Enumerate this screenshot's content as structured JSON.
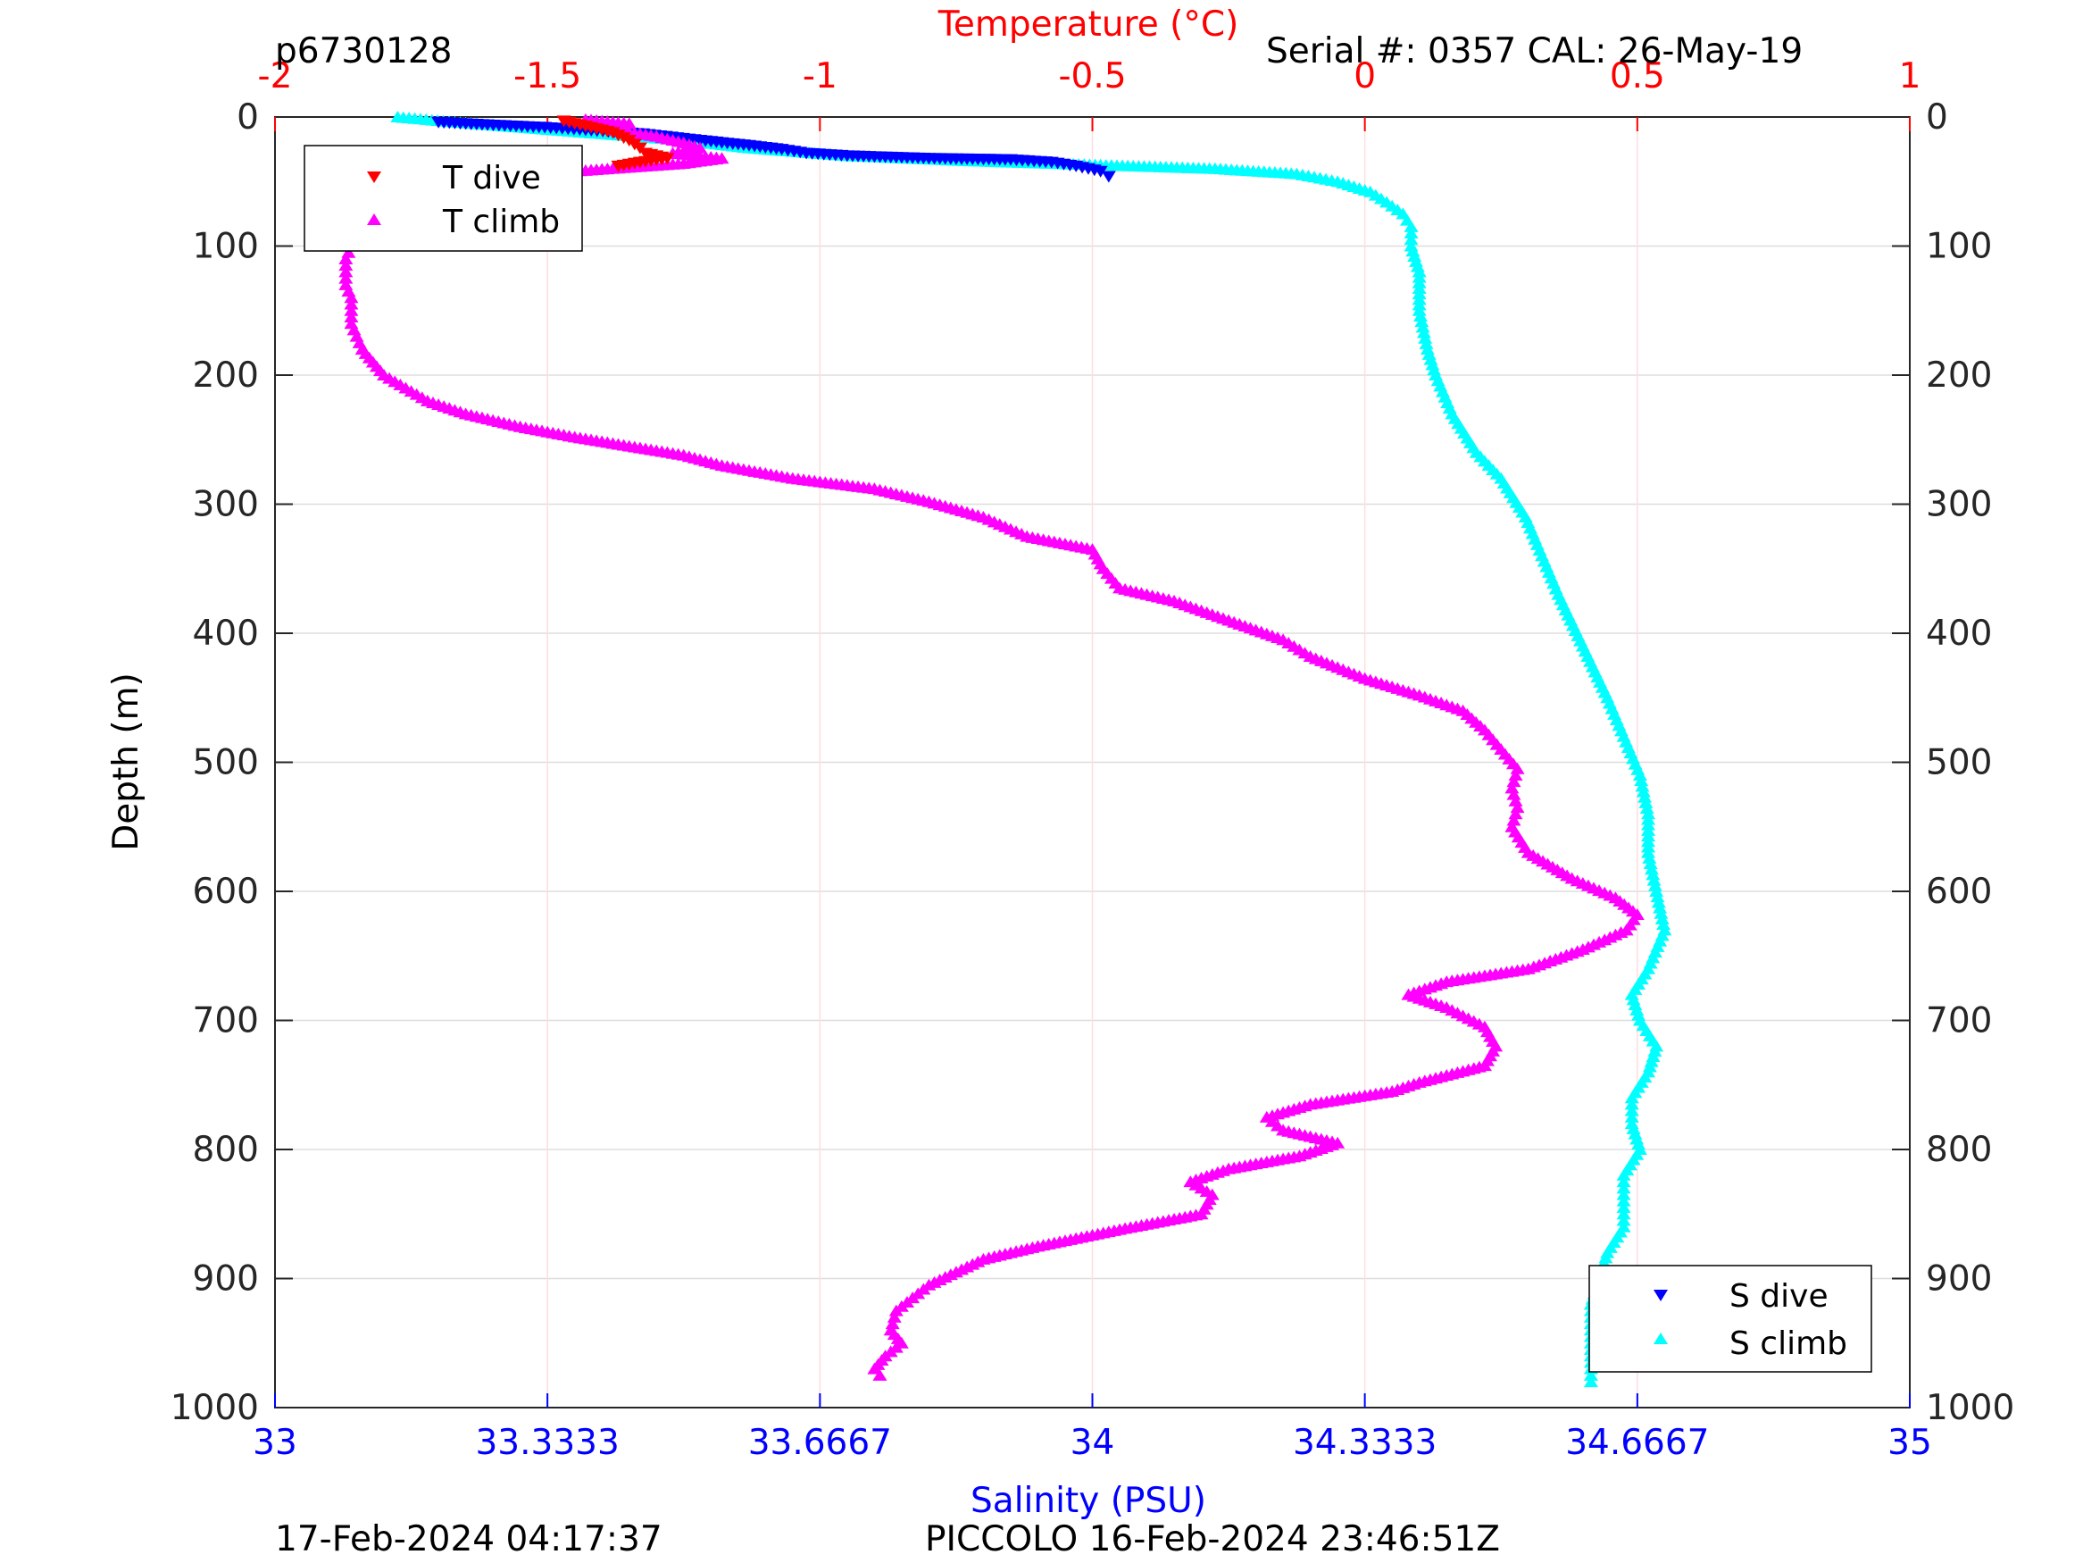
{
  "header": {
    "profile_id": "p6730128",
    "serial": "Serial #: 0357  CAL: 26-May-19"
  },
  "footer": {
    "generated": "17-Feb-2024 04:17:37",
    "mission": "PICCOLO 16-Feb-2024 23:46:51Z"
  },
  "colors": {
    "t_dive": "#ff0000",
    "t_climb": "#ff00ff",
    "s_dive": "#0000ff",
    "s_climb": "#00ffff",
    "temp_axis": "#ff0000",
    "sal_axis": "#0000ff"
  },
  "chart_data": {
    "type": "scatter",
    "ylabel": "Depth (m)",
    "ylim": [
      1000,
      0
    ],
    "yticks": [
      "0",
      "100",
      "200",
      "300",
      "400",
      "500",
      "600",
      "700",
      "800",
      "900",
      "1000"
    ],
    "temperature_axis": {
      "label": "Temperature (°C)",
      "lim": [
        -2,
        1
      ],
      "ticks": [
        "-2",
        "-1.5",
        "-1",
        "-0.5",
        "0",
        "0.5",
        "1"
      ]
    },
    "salinity_axis": {
      "label": "Salinity (PSU)",
      "lim": [
        33,
        35
      ],
      "ticks": [
        "33",
        "33.3333",
        "33.6667",
        "34",
        "34.3333",
        "34.6667",
        "35"
      ]
    },
    "grid": "on",
    "legends": [
      {
        "position": "top-left",
        "entries": [
          "T dive",
          "T climb"
        ]
      },
      {
        "position": "bottom-right",
        "entries": [
          "S dive",
          "S climb"
        ]
      }
    ],
    "series": [
      {
        "name": "T dive",
        "axis": "temperature",
        "marker": "triangle-down",
        "points": [
          [
            -1.47,
            3
          ],
          [
            -1.45,
            5
          ],
          [
            -1.42,
            8
          ],
          [
            -1.38,
            12
          ],
          [
            -1.35,
            18
          ],
          [
            -1.33,
            24
          ],
          [
            -1.32,
            28
          ],
          [
            -1.3,
            30
          ],
          [
            -1.28,
            32
          ],
          [
            -1.33,
            35
          ],
          [
            -1.37,
            38
          ]
        ]
      },
      {
        "name": "T climb",
        "axis": "temperature",
        "marker": "triangle-up",
        "points": [
          [
            -1.43,
            2
          ],
          [
            -1.35,
            5
          ],
          [
            -1.38,
            10
          ],
          [
            -1.3,
            15
          ],
          [
            -1.25,
            20
          ],
          [
            -1.22,
            24
          ],
          [
            -1.27,
            28
          ],
          [
            -1.18,
            32
          ],
          [
            -1.25,
            36
          ],
          [
            -1.45,
            42
          ],
          [
            -1.6,
            50
          ],
          [
            -1.7,
            60
          ],
          [
            -1.78,
            70
          ],
          [
            -1.82,
            80
          ],
          [
            -1.84,
            90
          ],
          [
            -1.86,
            100
          ],
          [
            -1.87,
            110
          ],
          [
            -1.87,
            120
          ],
          [
            -1.87,
            130
          ],
          [
            -1.86,
            140
          ],
          [
            -1.86,
            150
          ],
          [
            -1.86,
            160
          ],
          [
            -1.85,
            170
          ],
          [
            -1.84,
            180
          ],
          [
            -1.82,
            190
          ],
          [
            -1.8,
            200
          ],
          [
            -1.76,
            210
          ],
          [
            -1.72,
            220
          ],
          [
            -1.65,
            230
          ],
          [
            -1.55,
            240
          ],
          [
            -1.45,
            248
          ],
          [
            -1.35,
            255
          ],
          [
            -1.25,
            262
          ],
          [
            -1.18,
            270
          ],
          [
            -1.05,
            280
          ],
          [
            -0.9,
            288
          ],
          [
            -0.8,
            298
          ],
          [
            -0.7,
            310
          ],
          [
            -0.62,
            325
          ],
          [
            -0.5,
            335
          ],
          [
            -0.48,
            350
          ],
          [
            -0.45,
            365
          ],
          [
            -0.35,
            375
          ],
          [
            -0.25,
            390
          ],
          [
            -0.15,
            405
          ],
          [
            -0.1,
            418
          ],
          [
            0.0,
            435
          ],
          [
            0.1,
            448
          ],
          [
            0.18,
            460
          ],
          [
            0.22,
            475
          ],
          [
            0.25,
            490
          ],
          [
            0.28,
            505
          ],
          [
            0.27,
            520
          ],
          [
            0.28,
            535
          ],
          [
            0.27,
            550
          ],
          [
            0.3,
            570
          ],
          [
            0.38,
            590
          ],
          [
            0.46,
            605
          ],
          [
            0.5,
            618
          ],
          [
            0.48,
            630
          ],
          [
            0.4,
            645
          ],
          [
            0.3,
            660
          ],
          [
            0.15,
            670
          ],
          [
            0.08,
            680
          ],
          [
            0.15,
            690
          ],
          [
            0.22,
            705
          ],
          [
            0.24,
            720
          ],
          [
            0.22,
            735
          ],
          [
            0.1,
            748
          ],
          [
            0.05,
            755
          ],
          [
            -0.1,
            765
          ],
          [
            -0.18,
            775
          ],
          [
            -0.15,
            785
          ],
          [
            -0.05,
            795
          ],
          [
            -0.12,
            805
          ],
          [
            -0.25,
            815
          ],
          [
            -0.32,
            825
          ],
          [
            -0.28,
            835
          ],
          [
            -0.3,
            850
          ],
          [
            -0.45,
            862
          ],
          [
            -0.6,
            875
          ],
          [
            -0.7,
            885
          ],
          [
            -0.75,
            895
          ],
          [
            -0.8,
            905
          ],
          [
            -0.83,
            915
          ],
          [
            -0.86,
            925
          ],
          [
            -0.87,
            940
          ],
          [
            -0.85,
            950
          ],
          [
            -0.88,
            960
          ],
          [
            -0.9,
            970
          ],
          [
            -0.89,
            975
          ]
        ]
      },
      {
        "name": "S dive",
        "axis": "salinity",
        "marker": "triangle-down",
        "points": [
          [
            33.2,
            4
          ],
          [
            33.26,
            6
          ],
          [
            33.33,
            8
          ],
          [
            33.38,
            10
          ],
          [
            33.45,
            13
          ],
          [
            33.52,
            18
          ],
          [
            33.58,
            22
          ],
          [
            33.62,
            25
          ],
          [
            33.65,
            28
          ],
          [
            33.7,
            30
          ],
          [
            33.8,
            32
          ],
          [
            33.9,
            33
          ],
          [
            33.95,
            35
          ],
          [
            33.98,
            38
          ],
          [
            34.01,
            42
          ],
          [
            34.02,
            46
          ]
        ]
      },
      {
        "name": "S climb",
        "axis": "salinity",
        "marker": "triangle-up",
        "points": [
          [
            33.15,
            0
          ],
          [
            33.22,
            4
          ],
          [
            33.3,
            8
          ],
          [
            33.4,
            13
          ],
          [
            33.5,
            18
          ],
          [
            33.58,
            24
          ],
          [
            33.7,
            30
          ],
          [
            33.85,
            34
          ],
          [
            33.95,
            36
          ],
          [
            34.05,
            38
          ],
          [
            34.15,
            40
          ],
          [
            34.25,
            44
          ],
          [
            34.3,
            50
          ],
          [
            34.34,
            58
          ],
          [
            34.36,
            66
          ],
          [
            34.38,
            75
          ],
          [
            34.39,
            85
          ],
          [
            34.39,
            100
          ],
          [
            34.4,
            120
          ],
          [
            34.4,
            150
          ],
          [
            34.41,
            180
          ],
          [
            34.42,
            200
          ],
          [
            34.44,
            230
          ],
          [
            34.47,
            260
          ],
          [
            34.5,
            280
          ],
          [
            34.53,
            310
          ],
          [
            34.55,
            340
          ],
          [
            34.57,
            370
          ],
          [
            34.6,
            410
          ],
          [
            34.63,
            450
          ],
          [
            34.65,
            480
          ],
          [
            34.67,
            510
          ],
          [
            34.68,
            540
          ],
          [
            34.68,
            570
          ],
          [
            34.69,
            600
          ],
          [
            34.7,
            630
          ],
          [
            34.68,
            660
          ],
          [
            34.66,
            680
          ],
          [
            34.67,
            700
          ],
          [
            34.69,
            720
          ],
          [
            34.68,
            740
          ],
          [
            34.66,
            760
          ],
          [
            34.66,
            780
          ],
          [
            34.67,
            800
          ],
          [
            34.65,
            820
          ],
          [
            34.65,
            840
          ],
          [
            34.65,
            860
          ],
          [
            34.63,
            880
          ],
          [
            34.62,
            900
          ],
          [
            34.61,
            920
          ],
          [
            34.61,
            940
          ],
          [
            34.61,
            960
          ],
          [
            34.61,
            980
          ]
        ]
      }
    ]
  }
}
